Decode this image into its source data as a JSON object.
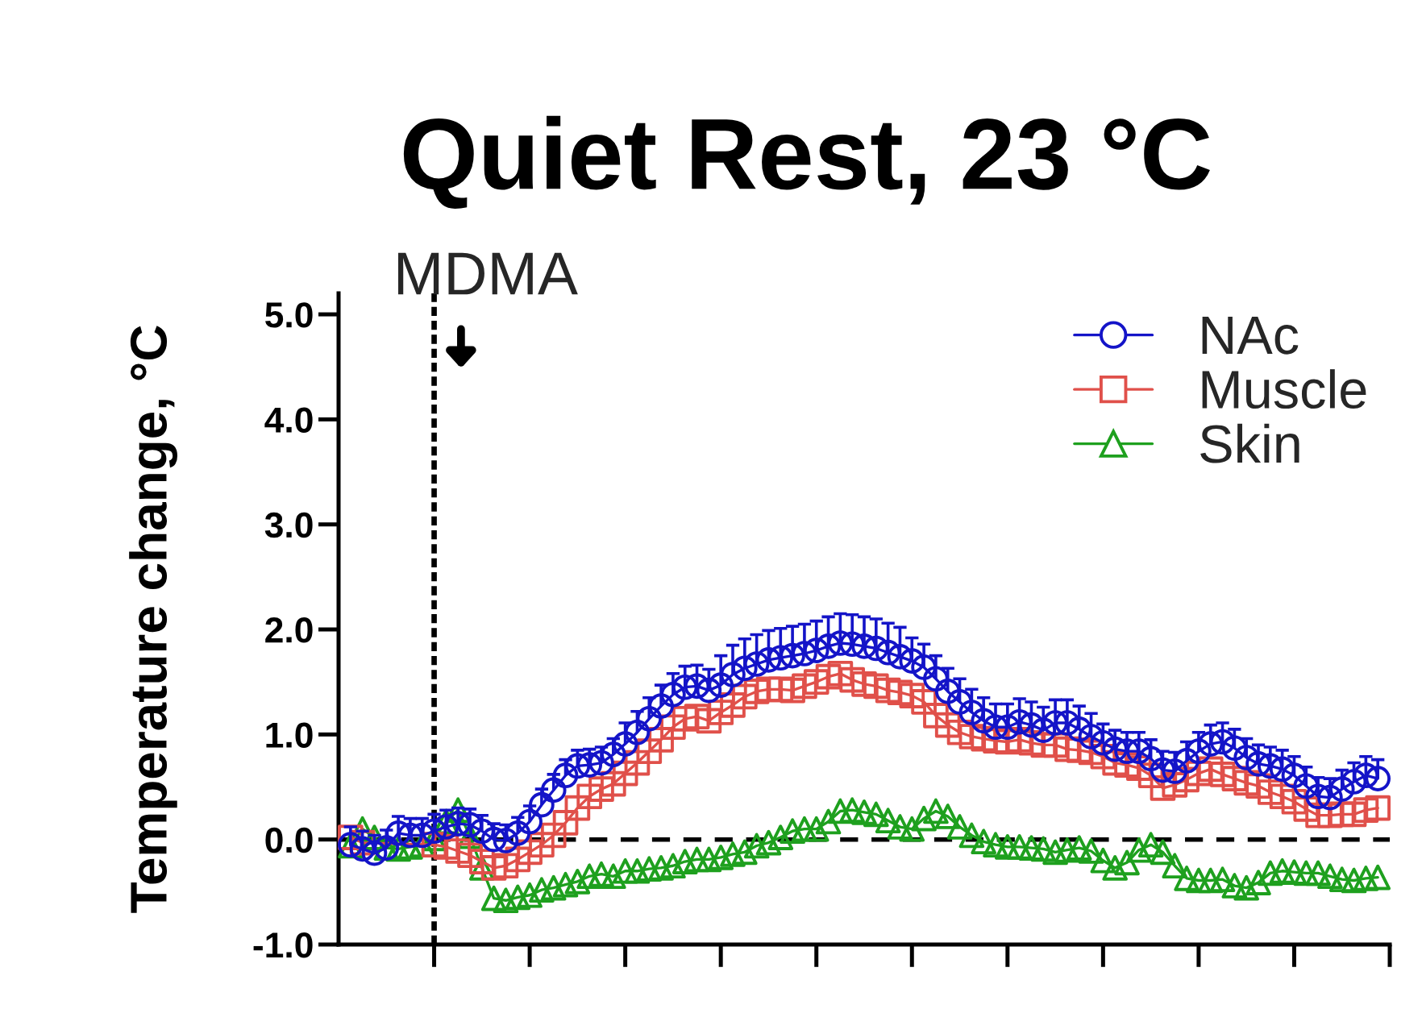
{
  "chart_data": {
    "type": "line",
    "title": "Quiet Rest, 23 °C",
    "ylabel": "Temperature change, °C",
    "annotations": [
      "MDMA"
    ],
    "categories": [
      null,
      null,
      null,
      null,
      null,
      null,
      null,
      null,
      null,
      null,
      null,
      null,
      null,
      null,
      null,
      null,
      null,
      null,
      null,
      null,
      null,
      null,
      null,
      null,
      null,
      null,
      null,
      null,
      null,
      null,
      null,
      null,
      null,
      null,
      null,
      null,
      null,
      null,
      null,
      null,
      null,
      null,
      null,
      null,
      null,
      null,
      null,
      null,
      null,
      null,
      null,
      null,
      null,
      null,
      null,
      null,
      null,
      null,
      null,
      null,
      null,
      null,
      null,
      null,
      null,
      null,
      null,
      null,
      null,
      null,
      null,
      null,
      null,
      null,
      null,
      null,
      null,
      null,
      null,
      null,
      null,
      null,
      null,
      null,
      null,
      null,
      null
    ],
    "ylim": [
      -1.0,
      5.2
    ],
    "yticks": [
      {
        "value": -1.0,
        "label": "-1.0"
      },
      {
        "value": 0.0,
        "label": "0.0"
      },
      {
        "value": 1.0,
        "label": "1.0"
      },
      {
        "value": 2.0,
        "label": "2.0"
      },
      {
        "value": 3.0,
        "label": "3.0"
      },
      {
        "value": 4.0,
        "label": "4.0"
      },
      {
        "value": 5.0,
        "label": "5.0"
      }
    ],
    "tick_labels": "y",
    "legend": "top right",
    "line_style": "solid",
    "ref_lines": [
      {
        "axis": "y",
        "value": 0,
        "line_style": "dashed",
        "color": "#000000"
      }
    ],
    "series": [
      {
        "name": "NAc",
        "color": "#1414c8",
        "marker": "circle",
        "values": [
          -0.05,
          -0.09,
          -0.13,
          -0.08,
          0.06,
          0.04,
          0.04,
          0.08,
          0.12,
          0.15,
          0.14,
          0.08,
          0.0,
          -0.01,
          0.06,
          0.17,
          0.33,
          0.47,
          0.61,
          0.7,
          0.71,
          0.73,
          0.81,
          0.91,
          1.02,
          1.15,
          1.27,
          1.38,
          1.45,
          1.46,
          1.42,
          1.47,
          1.57,
          1.63,
          1.67,
          1.71,
          1.73,
          1.75,
          1.77,
          1.8,
          1.84,
          1.87,
          1.86,
          1.84,
          1.82,
          1.78,
          1.74,
          1.7,
          1.64,
          1.53,
          1.41,
          1.31,
          1.21,
          1.13,
          1.07,
          1.07,
          1.12,
          1.09,
          1.04,
          1.11,
          1.11,
          1.05,
          0.98,
          0.92,
          0.86,
          0.84,
          0.84,
          0.77,
          0.66,
          0.65,
          0.75,
          0.84,
          0.91,
          0.93,
          0.87,
          0.78,
          0.72,
          0.7,
          0.67,
          0.61,
          0.51,
          0.41,
          0.4,
          0.48,
          0.55,
          0.61,
          0.58
        ],
        "errors": [
          [
            -0.05,
            0.12
          ],
          [
            -0.09,
            0.08
          ],
          [
            -0.13,
            0.04
          ],
          [
            -0.08,
            0.09
          ],
          [
            0.06,
            0.22
          ],
          [
            0.04,
            0.2
          ],
          [
            0.04,
            0.2
          ],
          [
            0.08,
            0.24
          ],
          [
            0.12,
            0.28
          ],
          [
            0.15,
            0.3
          ],
          [
            0.14,
            0.29
          ],
          [
            0.08,
            0.23
          ],
          [
            0.0,
            0.15
          ],
          [
            -0.01,
            0.14
          ],
          [
            0.06,
            0.21
          ],
          [
            0.17,
            0.32
          ],
          [
            0.33,
            0.48
          ],
          [
            0.47,
            0.62
          ],
          [
            0.61,
            0.76
          ],
          [
            0.7,
            0.85
          ],
          [
            0.71,
            0.86
          ],
          [
            0.73,
            0.88
          ],
          [
            0.81,
            0.96
          ],
          [
            0.91,
            1.11
          ],
          [
            1.02,
            1.22
          ],
          [
            1.15,
            1.35
          ],
          [
            1.27,
            1.47
          ],
          [
            1.38,
            1.58
          ],
          [
            1.45,
            1.65
          ],
          [
            1.46,
            1.66
          ],
          [
            1.42,
            1.62
          ],
          [
            1.47,
            1.75
          ],
          [
            1.57,
            1.85
          ],
          [
            1.63,
            1.91
          ],
          [
            1.67,
            1.95
          ],
          [
            1.71,
            1.99
          ],
          [
            1.73,
            2.01
          ],
          [
            1.75,
            2.03
          ],
          [
            1.77,
            2.05
          ],
          [
            1.8,
            2.08
          ],
          [
            1.84,
            2.12
          ],
          [
            1.87,
            2.15
          ],
          [
            1.86,
            2.14
          ],
          [
            1.84,
            2.12
          ],
          [
            1.82,
            2.1
          ],
          [
            1.78,
            2.06
          ],
          [
            1.74,
            2.02
          ],
          [
            1.7,
            1.92
          ],
          [
            1.64,
            1.86
          ],
          [
            1.53,
            1.75
          ],
          [
            1.41,
            1.63
          ],
          [
            1.31,
            1.53
          ],
          [
            1.21,
            1.43
          ],
          [
            1.13,
            1.35
          ],
          [
            1.07,
            1.29
          ],
          [
            1.07,
            1.29
          ],
          [
            1.12,
            1.34
          ],
          [
            1.09,
            1.31
          ],
          [
            1.04,
            1.26
          ],
          [
            1.11,
            1.33
          ],
          [
            1.11,
            1.33
          ],
          [
            1.05,
            1.27
          ],
          [
            0.98,
            1.2
          ],
          [
            0.92,
            1.1
          ],
          [
            0.86,
            1.04
          ],
          [
            0.84,
            1.02
          ],
          [
            0.84,
            1.02
          ],
          [
            0.77,
            0.95
          ],
          [
            0.66,
            0.84
          ],
          [
            0.65,
            0.83
          ],
          [
            0.75,
            0.93
          ],
          [
            0.84,
            1.02
          ],
          [
            0.91,
            1.09
          ],
          [
            0.93,
            1.11
          ],
          [
            0.87,
            1.05
          ],
          [
            0.78,
            0.96
          ],
          [
            0.72,
            0.9
          ],
          [
            0.7,
            0.88
          ],
          [
            0.67,
            0.85
          ],
          [
            0.61,
            0.79
          ],
          [
            0.51,
            0.69
          ],
          [
            0.41,
            0.59
          ],
          [
            0.4,
            0.58
          ],
          [
            0.48,
            0.66
          ],
          [
            0.55,
            0.73
          ],
          [
            0.61,
            0.79
          ],
          [
            0.58,
            0.76
          ]
        ]
      },
      {
        "name": "Muscle",
        "color": "#e0504a",
        "marker": "square",
        "values": [
          0.02,
          -0.03,
          null,
          null,
          null,
          null,
          null,
          -0.05,
          -0.07,
          -0.11,
          -0.15,
          -0.21,
          -0.27,
          -0.25,
          -0.19,
          -0.12,
          -0.05,
          0.04,
          0.16,
          0.3,
          0.41,
          0.48,
          0.53,
          0.63,
          0.73,
          0.84,
          0.95,
          1.07,
          1.15,
          1.17,
          1.13,
          1.21,
          1.28,
          1.36,
          1.41,
          1.43,
          1.43,
          1.42,
          1.46,
          1.5,
          1.55,
          1.58,
          1.52,
          1.48,
          1.46,
          1.42,
          1.4,
          1.37,
          1.31,
          1.18,
          1.09,
          1.02,
          0.98,
          0.96,
          0.94,
          0.93,
          0.95,
          0.92,
          0.9,
          0.9,
          0.86,
          0.85,
          0.83,
          0.79,
          0.73,
          0.71,
          0.68,
          0.61,
          0.49,
          0.52,
          0.57,
          0.63,
          0.67,
          0.62,
          0.58,
          0.54,
          0.51,
          0.45,
          0.41,
          0.36,
          0.29,
          0.23,
          0.23,
          0.24,
          0.24,
          0.28,
          0.3
        ]
      },
      {
        "name": "Skin",
        "color": "#1ea01e",
        "marker": "triangle",
        "values": [
          -0.06,
          0.1,
          0.02,
          -0.08,
          -0.09,
          -0.07,
          -0.05,
          0.01,
          0.17,
          0.28,
          0.03,
          -0.27,
          -0.56,
          -0.58,
          -0.55,
          -0.53,
          -0.48,
          -0.46,
          -0.43,
          -0.4,
          -0.35,
          -0.33,
          -0.35,
          -0.3,
          -0.3,
          -0.28,
          -0.27,
          -0.25,
          -0.21,
          -0.19,
          -0.19,
          -0.17,
          -0.14,
          -0.12,
          -0.06,
          -0.03,
          0.02,
          0.08,
          0.1,
          0.1,
          0.17,
          0.27,
          0.28,
          0.26,
          0.24,
          0.18,
          0.12,
          0.1,
          0.2,
          0.27,
          0.22,
          0.12,
          0.04,
          -0.02,
          -0.05,
          -0.07,
          -0.07,
          -0.08,
          -0.09,
          -0.12,
          -0.1,
          -0.08,
          -0.11,
          -0.2,
          -0.27,
          -0.22,
          -0.1,
          -0.05,
          -0.12,
          -0.25,
          -0.37,
          -0.39,
          -0.39,
          -0.38,
          -0.44,
          -0.46,
          -0.41,
          -0.32,
          -0.3,
          -0.31,
          -0.32,
          -0.32,
          -0.35,
          -0.38,
          -0.39,
          -0.37,
          -0.36
        ]
      }
    ]
  }
}
